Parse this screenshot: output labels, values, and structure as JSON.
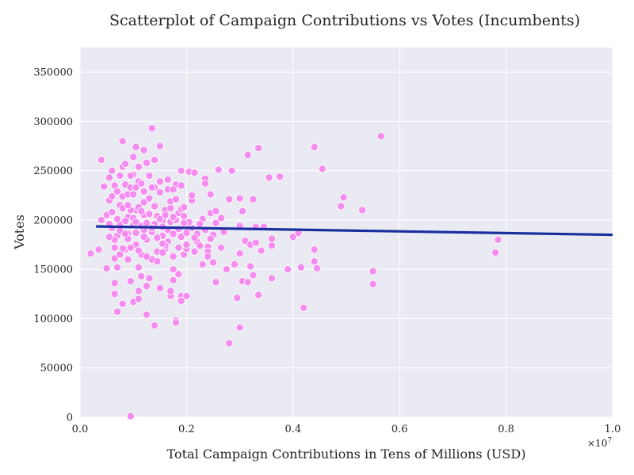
{
  "chart_data": {
    "type": "scatter",
    "title": "Scatterplot of Campaign Contributions vs Votes (Incumbents)",
    "xlabel": "Total Campaign Contributions in Tens of Millions (USD)",
    "ylabel": "Votes",
    "x_offset_text": "×10",
    "x_offset_exp": "7",
    "xlim": [
      0,
      1.0
    ],
    "ylim": [
      0,
      375000
    ],
    "xticks": [
      0.0,
      0.2,
      0.4,
      0.6,
      0.8,
      1.0
    ],
    "yticks": [
      0,
      50000,
      100000,
      150000,
      200000,
      250000,
      300000,
      350000
    ],
    "grid": true,
    "colors": {
      "background": "#eaeaf2",
      "points": "#f58cf0",
      "trend": "#1a2f9e"
    },
    "trend_line": {
      "x": [
        0.03,
        1.0
      ],
      "y": [
        193500,
        185000
      ]
    },
    "points": [
      [
        0.095,
        1000
      ],
      [
        0.02,
        166000
      ],
      [
        0.035,
        170000
      ],
      [
        0.04,
        261000
      ],
      [
        0.045,
        234000
      ],
      [
        0.05,
        205000
      ],
      [
        0.05,
        151000
      ],
      [
        0.055,
        220000
      ],
      [
        0.055,
        243000
      ],
      [
        0.06,
        250000
      ],
      [
        0.06,
        192000
      ],
      [
        0.065,
        235000
      ],
      [
        0.065,
        172000
      ],
      [
        0.065,
        161000
      ],
      [
        0.065,
        136000
      ],
      [
        0.065,
        125000
      ],
      [
        0.07,
        107000
      ],
      [
        0.07,
        184000
      ],
      [
        0.07,
        152000
      ],
      [
        0.075,
        215000
      ],
      [
        0.075,
        245000
      ],
      [
        0.075,
        196000
      ],
      [
        0.08,
        115000
      ],
      [
        0.08,
        224000
      ],
      [
        0.08,
        254000
      ],
      [
        0.08,
        280000
      ],
      [
        0.085,
        257000
      ],
      [
        0.085,
        236000
      ],
      [
        0.085,
        170000
      ],
      [
        0.09,
        186000
      ],
      [
        0.09,
        203000
      ],
      [
        0.09,
        226000
      ],
      [
        0.09,
        160000
      ],
      [
        0.095,
        138000
      ],
      [
        0.095,
        233000
      ],
      [
        0.1,
        117000
      ],
      [
        0.1,
        246000
      ],
      [
        0.1,
        264000
      ],
      [
        0.1,
        195000
      ],
      [
        0.105,
        274000
      ],
      [
        0.105,
        210000
      ],
      [
        0.105,
        187000
      ],
      [
        0.105,
        175000
      ],
      [
        0.11,
        128000
      ],
      [
        0.11,
        120000
      ],
      [
        0.11,
        239000
      ],
      [
        0.11,
        254000
      ],
      [
        0.11,
        152000
      ],
      [
        0.115,
        143000
      ],
      [
        0.115,
        165000
      ],
      [
        0.12,
        271000
      ],
      [
        0.12,
        229000
      ],
      [
        0.12,
        205000
      ],
      [
        0.12,
        190000
      ],
      [
        0.125,
        104000
      ],
      [
        0.125,
        133000
      ],
      [
        0.125,
        258000
      ],
      [
        0.125,
        180000
      ],
      [
        0.13,
        245000
      ],
      [
        0.13,
        141000
      ],
      [
        0.135,
        293000
      ],
      [
        0.135,
        160000
      ],
      [
        0.14,
        261000
      ],
      [
        0.14,
        233000
      ],
      [
        0.14,
        93000
      ],
      [
        0.145,
        204000
      ],
      [
        0.145,
        168000
      ],
      [
        0.15,
        275000
      ],
      [
        0.15,
        239000
      ],
      [
        0.15,
        131000
      ],
      [
        0.155,
        184000
      ],
      [
        0.155,
        199000
      ],
      [
        0.16,
        210000
      ],
      [
        0.16,
        171000
      ],
      [
        0.165,
        231000
      ],
      [
        0.165,
        190000
      ],
      [
        0.17,
        123000
      ],
      [
        0.17,
        128000
      ],
      [
        0.17,
        212000
      ],
      [
        0.175,
        139000
      ],
      [
        0.175,
        150000
      ],
      [
        0.175,
        163000
      ],
      [
        0.18,
        98000
      ],
      [
        0.18,
        96000
      ],
      [
        0.18,
        236000
      ],
      [
        0.185,
        145000
      ],
      [
        0.185,
        207000
      ],
      [
        0.19,
        123000
      ],
      [
        0.19,
        118000
      ],
      [
        0.19,
        235000
      ],
      [
        0.19,
        250000
      ],
      [
        0.195,
        165000
      ],
      [
        0.2,
        123000
      ],
      [
        0.2,
        196000
      ],
      [
        0.2,
        171000
      ],
      [
        0.205,
        249000
      ],
      [
        0.21,
        220000
      ],
      [
        0.21,
        225000
      ],
      [
        0.21,
        192000
      ],
      [
        0.215,
        248000
      ],
      [
        0.22,
        186000
      ],
      [
        0.22,
        178000
      ],
      [
        0.23,
        201000
      ],
      [
        0.23,
        155000
      ],
      [
        0.235,
        242000
      ],
      [
        0.235,
        237000
      ],
      [
        0.24,
        173000
      ],
      [
        0.24,
        168000
      ],
      [
        0.24,
        163000
      ],
      [
        0.245,
        226000
      ],
      [
        0.245,
        207000
      ],
      [
        0.25,
        185000
      ],
      [
        0.25,
        157000
      ],
      [
        0.255,
        137000
      ],
      [
        0.255,
        209000
      ],
      [
        0.26,
        251000
      ],
      [
        0.265,
        202000
      ],
      [
        0.27,
        188000
      ],
      [
        0.275,
        150000
      ],
      [
        0.28,
        221000
      ],
      [
        0.28,
        75000
      ],
      [
        0.285,
        250000
      ],
      [
        0.29,
        155000
      ],
      [
        0.295,
        121000
      ],
      [
        0.3,
        222000
      ],
      [
        0.3,
        194000
      ],
      [
        0.3,
        166000
      ],
      [
        0.3,
        91000
      ],
      [
        0.305,
        138000
      ],
      [
        0.305,
        209000
      ],
      [
        0.31,
        179000
      ],
      [
        0.315,
        137000
      ],
      [
        0.315,
        266000
      ],
      [
        0.32,
        153000
      ],
      [
        0.32,
        175000
      ],
      [
        0.325,
        144000
      ],
      [
        0.325,
        221000
      ],
      [
        0.33,
        193000
      ],
      [
        0.33,
        177000
      ],
      [
        0.335,
        273000
      ],
      [
        0.335,
        124000
      ],
      [
        0.34,
        169000
      ],
      [
        0.345,
        193000
      ],
      [
        0.355,
        243000
      ],
      [
        0.36,
        174000
      ],
      [
        0.36,
        181000
      ],
      [
        0.36,
        141000
      ],
      [
        0.375,
        244000
      ],
      [
        0.39,
        150000
      ],
      [
        0.4,
        183000
      ],
      [
        0.41,
        187000
      ],
      [
        0.415,
        152000
      ],
      [
        0.42,
        111000
      ],
      [
        0.44,
        274000
      ],
      [
        0.44,
        158000
      ],
      [
        0.44,
        170000
      ],
      [
        0.445,
        151000
      ],
      [
        0.455,
        252000
      ],
      [
        0.49,
        214000
      ],
      [
        0.495,
        223000
      ],
      [
        0.53,
        210000
      ],
      [
        0.55,
        148000
      ],
      [
        0.55,
        135000
      ],
      [
        0.565,
        285000
      ],
      [
        0.78,
        167000
      ],
      [
        0.785,
        180000
      ],
      [
        0.04,
        200000
      ],
      [
        0.055,
        196000
      ],
      [
        0.06,
        208000
      ],
      [
        0.07,
        201000
      ],
      [
        0.075,
        189000
      ],
      [
        0.08,
        212000
      ],
      [
        0.085,
        199000
      ],
      [
        0.09,
        181000
      ],
      [
        0.095,
        210000
      ],
      [
        0.1,
        202000
      ],
      [
        0.105,
        198000
      ],
      [
        0.11,
        213000
      ],
      [
        0.115,
        194000
      ],
      [
        0.12,
        183000
      ],
      [
        0.125,
        197000
      ],
      [
        0.13,
        206000
      ],
      [
        0.135,
        188000
      ],
      [
        0.14,
        196000
      ],
      [
        0.145,
        182000
      ],
      [
        0.15,
        201000
      ],
      [
        0.155,
        193000
      ],
      [
        0.16,
        205000
      ],
      [
        0.165,
        178000
      ],
      [
        0.17,
        198000
      ],
      [
        0.175,
        186000
      ],
      [
        0.18,
        200000
      ],
      [
        0.185,
        191000
      ],
      [
        0.19,
        183000
      ],
      [
        0.195,
        204000
      ],
      [
        0.2,
        187000
      ],
      [
        0.205,
        198000
      ],
      [
        0.215,
        182000
      ],
      [
        0.225,
        196000
      ],
      [
        0.235,
        190000
      ],
      [
        0.245,
        181000
      ],
      [
        0.06,
        224000
      ],
      [
        0.07,
        229000
      ],
      [
        0.08,
        171000
      ],
      [
        0.09,
        215000
      ],
      [
        0.1,
        226000
      ],
      [
        0.11,
        169000
      ],
      [
        0.12,
        218000
      ],
      [
        0.13,
        222000
      ],
      [
        0.14,
        214000
      ],
      [
        0.15,
        228000
      ],
      [
        0.16,
        174000
      ],
      [
        0.17,
        219000
      ],
      [
        0.18,
        221000
      ],
      [
        0.19,
        211000
      ],
      [
        0.2,
        175000
      ],
      [
        0.065,
        180000
      ],
      [
        0.085,
        186000
      ],
      [
        0.105,
        233000
      ],
      [
        0.125,
        163000
      ],
      [
        0.145,
        158000
      ],
      [
        0.165,
        241000
      ],
      [
        0.185,
        172000
      ],
      [
        0.095,
        172000
      ],
      [
        0.115,
        209000
      ],
      [
        0.135,
        192000
      ],
      [
        0.155,
        167000
      ],
      [
        0.175,
        203000
      ],
      [
        0.195,
        213000
      ],
      [
        0.215,
        168000
      ],
      [
        0.225,
        174000
      ],
      [
        0.055,
        183000
      ],
      [
        0.075,
        165000
      ],
      [
        0.095,
        245000
      ],
      [
        0.115,
        237000
      ],
      [
        0.135,
        233000
      ],
      [
        0.155,
        176000
      ],
      [
        0.175,
        231000
      ],
      [
        0.195,
        197000
      ],
      [
        0.265,
        172000
      ],
      [
        0.255,
        197000
      ]
    ]
  }
}
